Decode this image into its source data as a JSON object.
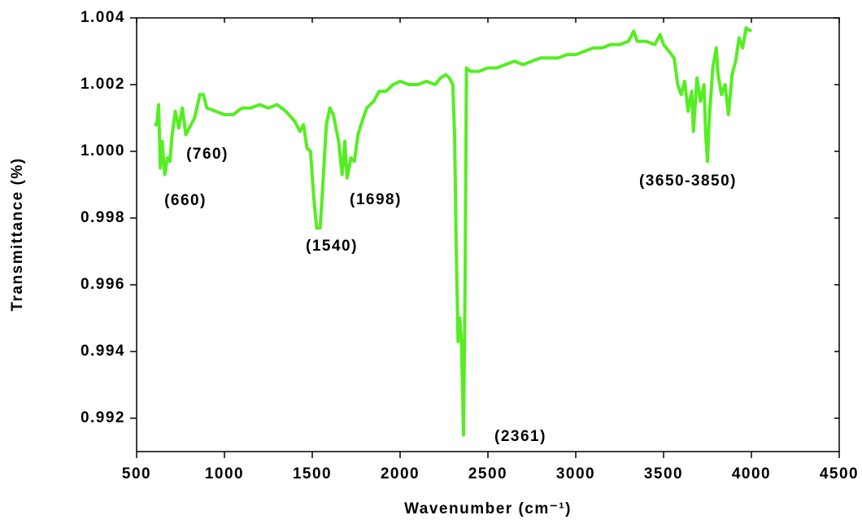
{
  "chart_data": {
    "type": "line",
    "x_label": "Wavenumber (cm⁻¹)",
    "y_label": "Transmittance (%)",
    "annotations": [
      "(660)",
      "(760)",
      "(1540)",
      "(1698)",
      "(2361)",
      "(3650-3850)"
    ],
    "x": [
      600,
      615,
      625,
      635,
      645,
      660,
      675,
      690,
      700,
      720,
      740,
      760,
      780,
      800,
      830,
      860,
      880,
      900,
      950,
      1000,
      1050,
      1100,
      1150,
      1200,
      1250,
      1300,
      1350,
      1400,
      1430,
      1450,
      1470,
      1490,
      1510,
      1525,
      1545,
      1560,
      1580,
      1600,
      1620,
      1650,
      1670,
      1685,
      1698,
      1720,
      1740,
      1760,
      1790,
      1810,
      1850,
      1880,
      1920,
      1960,
      2000,
      2050,
      2100,
      2150,
      2200,
      2230,
      2260,
      2280,
      2300,
      2310,
      2320,
      2330,
      2340,
      2350,
      2361,
      2370,
      2378,
      2400,
      2450,
      2500,
      2550,
      2600,
      2650,
      2700,
      2750,
      2800,
      2850,
      2900,
      2950,
      3000,
      3050,
      3100,
      3150,
      3200,
      3250,
      3300,
      3330,
      3350,
      3400,
      3450,
      3480,
      3500,
      3530,
      3560,
      3580,
      3600,
      3620,
      3640,
      3660,
      3670,
      3690,
      3710,
      3730,
      3740,
      3750,
      3760,
      3780,
      3800,
      3810,
      3830,
      3850,
      3870,
      3890,
      3910,
      3930,
      3950,
      3970,
      4000
    ],
    "series": [
      {
        "name": "Transmittance",
        "color": "#55ee22",
        "values": [
          1.0008,
          1.0008,
          1.0014,
          0.9995,
          1.0003,
          0.9993,
          0.9998,
          0.9997,
          1.0004,
          1.0012,
          1.0007,
          1.0013,
          1.0005,
          1.0007,
          1.001,
          1.0017,
          1.0017,
          1.0013,
          1.0012,
          1.0011,
          1.0011,
          1.0013,
          1.0013,
          1.0014,
          1.0013,
          1.0014,
          1.0012,
          1.0009,
          1.0006,
          1.0008,
          1.0001,
          1.0,
          0.9985,
          0.9977,
          0.9977,
          0.999,
          1.0008,
          1.0013,
          1.0011,
          1.0003,
          0.9993,
          1.0003,
          0.9992,
          0.9998,
          0.9997,
          1.0005,
          1.001,
          1.0013,
          1.0015,
          1.0018,
          1.0018,
          1.002,
          1.0021,
          1.002,
          1.002,
          1.0021,
          1.002,
          1.0022,
          1.0023,
          1.0022,
          1.002,
          1.0005,
          0.997,
          0.9943,
          0.995,
          0.9942,
          0.9915,
          0.996,
          1.0025,
          1.0024,
          1.0024,
          1.0025,
          1.0025,
          1.0026,
          1.0027,
          1.0026,
          1.0027,
          1.0028,
          1.0028,
          1.0028,
          1.0029,
          1.0029,
          1.003,
          1.0031,
          1.0031,
          1.0032,
          1.0032,
          1.0033,
          1.0036,
          1.0033,
          1.0033,
          1.0032,
          1.0035,
          1.0032,
          1.003,
          1.0028,
          1.002,
          1.0017,
          1.0021,
          1.0012,
          1.0018,
          1.0006,
          1.0022,
          1.0015,
          1.002,
          1.0005,
          0.9997,
          1.001,
          1.0025,
          1.0031,
          1.0023,
          1.0017,
          1.002,
          1.0011,
          1.0023,
          1.0027,
          1.0034,
          1.0031,
          1.0037,
          1.0036
        ]
      }
    ],
    "xlim": [
      500,
      4500
    ],
    "xticks": [
      500,
      1000,
      1500,
      2000,
      2500,
      3000,
      3500,
      4000,
      4500
    ],
    "ylim": [
      0.991,
      1.004
    ],
    "yticks": [
      0.992,
      0.994,
      0.996,
      0.998,
      {
        "value": 1,
        "label": "1.000"
      },
      1.002,
      1.004
    ],
    "grid": false
  }
}
